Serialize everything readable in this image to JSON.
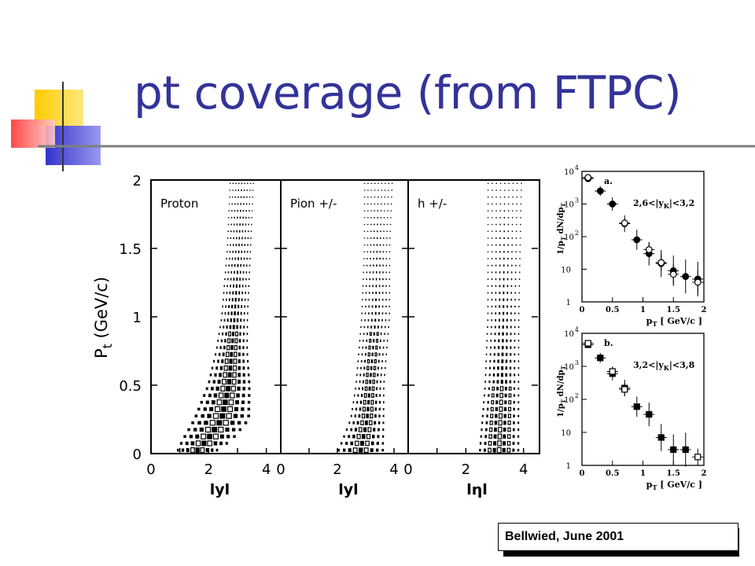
{
  "slide": {
    "title": "pt coverage (from FTPC)",
    "credit": "Bellwied, June 2001",
    "colors": {
      "title": "#333399",
      "deco_yellow": "#FFCC00",
      "deco_blue": "#3333CC",
      "deco_red": "#FF3333",
      "rule": "#7f7f7f"
    }
  },
  "chart_data": [
    {
      "type": "heatmap",
      "panel_label": "Proton",
      "xlabel": "lyl",
      "ylabel": "P_t (GeV/c)",
      "xlim": [
        0,
        4.5
      ],
      "ylim": [
        0,
        2
      ],
      "x_ticks": [
        "0",
        "2",
        "4"
      ],
      "y_ticks": [
        "0",
        "0.5",
        "1",
        "1.5",
        "2"
      ],
      "coverage_band": [
        {
          "pt": 0.0,
          "y_min": 0.8,
          "y_max": 2.2
        },
        {
          "pt": 0.1,
          "y_min": 1.0,
          "y_max": 2.9
        },
        {
          "pt": 0.25,
          "y_min": 1.4,
          "y_max": 3.5
        },
        {
          "pt": 0.5,
          "y_min": 1.9,
          "y_max": 3.5
        },
        {
          "pt": 0.75,
          "y_min": 2.2,
          "y_max": 3.4
        },
        {
          "pt": 1.0,
          "y_min": 2.4,
          "y_max": 3.4
        },
        {
          "pt": 1.5,
          "y_min": 2.6,
          "y_max": 3.5
        },
        {
          "pt": 2.0,
          "y_min": 2.7,
          "y_max": 3.6
        }
      ]
    },
    {
      "type": "heatmap",
      "panel_label": "Pion +/-",
      "xlabel": "lyl",
      "xlim": [
        0,
        4.5
      ],
      "ylim": [
        0,
        2
      ],
      "x_ticks": [
        "0",
        "2",
        "4"
      ],
      "coverage_band": [
        {
          "pt": 0.0,
          "y_min": 1.9,
          "y_max": 3.7
        },
        {
          "pt": 0.05,
          "y_min": 2.0,
          "y_max": 3.7
        },
        {
          "pt": 0.25,
          "y_min": 2.4,
          "y_max": 3.7
        },
        {
          "pt": 0.5,
          "y_min": 2.6,
          "y_max": 3.7
        },
        {
          "pt": 1.0,
          "y_min": 2.8,
          "y_max": 3.9
        },
        {
          "pt": 1.5,
          "y_min": 2.9,
          "y_max": 3.9
        },
        {
          "pt": 2.0,
          "y_min": 2.9,
          "y_max": 4.0
        }
      ]
    },
    {
      "type": "heatmap",
      "panel_label": "h +/-",
      "xlabel": "lηl",
      "xlim": [
        0,
        4.5
      ],
      "ylim": [
        0,
        2
      ],
      "x_ticks": [
        "0",
        "2",
        "4"
      ],
      "coverage_band": [
        {
          "pt": 0.0,
          "y_min": 2.4,
          "y_max": 3.9
        },
        {
          "pt": 0.25,
          "y_min": 2.5,
          "y_max": 3.9
        },
        {
          "pt": 0.5,
          "y_min": 2.6,
          "y_max": 3.9
        },
        {
          "pt": 1.0,
          "y_min": 2.7,
          "y_max": 3.9
        },
        {
          "pt": 2.0,
          "y_min": 2.7,
          "y_max": 4.0
        }
      ]
    },
    {
      "type": "scatter",
      "panel_label": "a.",
      "annotation": "2,6<|y",
      "annotation_sub": "K",
      "annotation_tail": "|<3,2",
      "xlabel": "p",
      "xlabel_sub": "T",
      "xlabel_tail": "[ GeV/c ]",
      "ylabel": "1/p",
      "ylabel_sub": "T",
      "ylabel_tail": "dN/dp",
      "ylabel_sub2": "T",
      "xlim": [
        0,
        2
      ],
      "ylim": [
        1,
        10000
      ],
      "log_y": true,
      "x_ticks": [
        "0",
        "0.5",
        "1",
        "1.5",
        "2"
      ],
      "y_ticks": [
        "1",
        "10",
        "10",
        "10",
        "10"
      ],
      "y_tick_exponents": [
        "",
        "",
        "2",
        "3",
        "4"
      ],
      "series": [
        {
          "marker": "filled",
          "x": [
            0.1,
            0.3,
            0.5,
            0.7,
            0.9,
            1.1,
            1.3,
            1.5,
            1.7,
            1.9
          ],
          "y": [
            6000,
            2500,
            1000,
            250,
            80,
            30,
            15,
            9,
            6,
            5
          ]
        },
        {
          "marker": "open",
          "x": [
            0.1,
            0.7,
            1.1,
            1.3,
            1.5,
            1.9
          ],
          "y": [
            6500,
            260,
            40,
            16,
            7,
            4
          ]
        }
      ]
    },
    {
      "type": "scatter",
      "panel_label": "b.",
      "annotation": "3,2<|y",
      "annotation_sub": "K",
      "annotation_tail": "|<3,8",
      "xlabel": "p",
      "xlabel_sub": "T",
      "xlabel_tail": "[ GeV/c ]",
      "ylabel": "1/p",
      "ylabel_sub": "T",
      "ylabel_tail": "dN/dp",
      "ylabel_sub2": "T",
      "xlim": [
        0,
        2
      ],
      "ylim": [
        1,
        10000
      ],
      "log_y": true,
      "x_ticks": [
        "0",
        "0.5",
        "1",
        "1.5",
        "2"
      ],
      "y_ticks": [
        "1",
        "10",
        "10",
        "10",
        "10"
      ],
      "y_tick_exponents": [
        "",
        "",
        "2",
        "3",
        "4"
      ],
      "series": [
        {
          "marker": "filled-square",
          "x": [
            0.1,
            0.3,
            0.5,
            0.7,
            0.9,
            1.1,
            1.3,
            1.5,
            1.7
          ],
          "y": [
            4500,
            1800,
            600,
            220,
            60,
            35,
            7,
            3,
            3
          ]
        },
        {
          "marker": "open-square",
          "x": [
            0.1,
            0.5,
            0.7,
            1.9
          ],
          "y": [
            5000,
            700,
            200,
            1.8
          ]
        }
      ]
    }
  ]
}
